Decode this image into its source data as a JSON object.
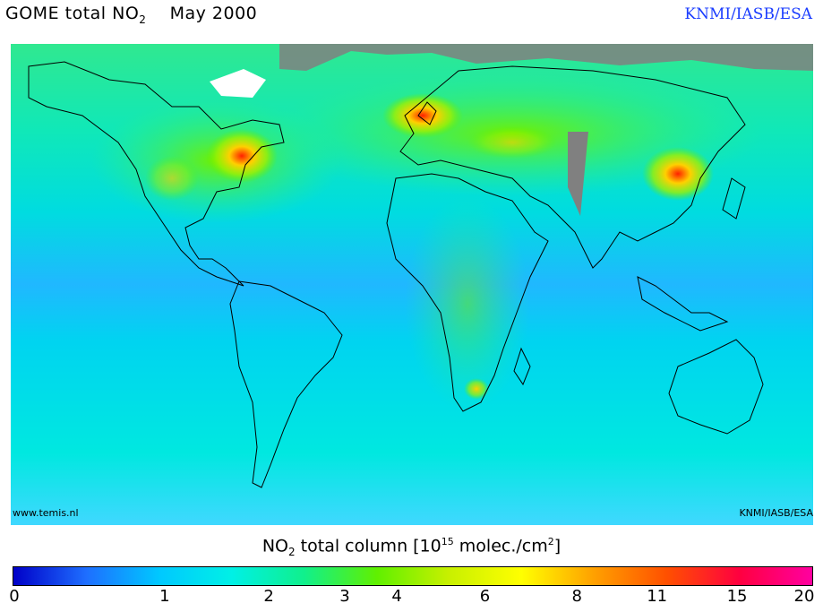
{
  "header": {
    "title_prefix": "GOME total NO",
    "title_sub": "2",
    "title_date": "May 2000",
    "credit": "KNMI/IASB/ESA"
  },
  "map": {
    "watermark_left": "www.temis.nl",
    "watermark_right": "KNMI/IASB/ESA",
    "no_data_color": "#808080",
    "hotspots": [
      "Western Europe",
      "Eastern USA",
      "Eastern China",
      "South Africa"
    ]
  },
  "legend": {
    "title_prefix": "NO",
    "title_sub": "2",
    "title_mid": " total column [10",
    "title_exp1": "15",
    "title_mid2": " molec./cm",
    "title_exp2": "2",
    "title_end": "]",
    "ticks": [
      "0",
      "1",
      "2",
      "3",
      "4",
      "6",
      "8",
      "11",
      "15",
      "20"
    ],
    "colors": [
      "#0000c8",
      "#1e6eff",
      "#00c8ff",
      "#00f0e6",
      "#10f08c",
      "#60f000",
      "#c8f000",
      "#ffff00",
      "#ffa000",
      "#ff5000",
      "#ff0040",
      "#ff00a0"
    ]
  }
}
